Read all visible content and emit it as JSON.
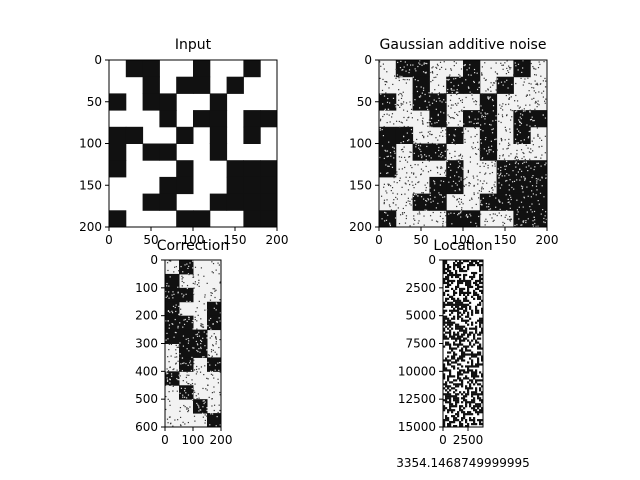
{
  "figure": {
    "caption": "3354.1468749999995"
  },
  "chart_data": [
    {
      "type": "heatmap",
      "title": "Input",
      "xlabel": "",
      "ylabel": "",
      "xlim": [
        0,
        200
      ],
      "ylim": [
        200,
        0
      ],
      "xticks": [
        0,
        50,
        100,
        150,
        200
      ],
      "yticks": [
        0,
        50,
        100,
        150,
        200
      ],
      "colormap": "gray",
      "rows": 10,
      "cols": 10,
      "grid": [
        [
          1,
          0,
          0,
          1,
          1,
          0,
          1,
          1,
          0,
          1
        ],
        [
          1,
          1,
          0,
          1,
          0,
          0,
          1,
          0,
          1,
          1
        ],
        [
          0,
          1,
          0,
          0,
          1,
          1,
          0,
          1,
          1,
          1
        ],
        [
          1,
          1,
          1,
          0,
          1,
          0,
          0,
          1,
          0,
          0
        ],
        [
          0,
          0,
          1,
          1,
          0,
          1,
          0,
          1,
          0,
          1
        ],
        [
          0,
          1,
          0,
          0,
          1,
          1,
          0,
          1,
          1,
          1
        ],
        [
          0,
          1,
          1,
          1,
          0,
          1,
          1,
          0,
          0,
          0
        ],
        [
          1,
          1,
          1,
          0,
          0,
          1,
          1,
          0,
          0,
          0
        ],
        [
          1,
          1,
          0,
          0,
          1,
          1,
          0,
          0,
          0,
          0
        ],
        [
          0,
          1,
          1,
          1,
          0,
          0,
          1,
          1,
          0,
          0
        ]
      ]
    },
    {
      "type": "heatmap",
      "title": "Gaussian additive noise",
      "xlabel": "",
      "ylabel": "",
      "xlim": [
        0,
        200
      ],
      "ylim": [
        200,
        0
      ],
      "xticks": [
        0,
        50,
        100,
        150,
        200
      ],
      "yticks": [
        0,
        50,
        100,
        150,
        200
      ],
      "colormap": "gray",
      "noise": "gaussian additive, salt-and-pepper speckle"
    },
    {
      "type": "heatmap",
      "title": "Correction",
      "xlabel": "",
      "ylabel": "",
      "xlim": [
        0,
        200
      ],
      "ylim": [
        600,
        0
      ],
      "xticks": [
        0,
        100,
        200
      ],
      "yticks": [
        0,
        100,
        200,
        300,
        400,
        500,
        600
      ],
      "colormap": "gray",
      "rows": 12,
      "cols": 4,
      "grid": [
        [
          1,
          0,
          1,
          1
        ],
        [
          0,
          1,
          1,
          1
        ],
        [
          0,
          0,
          1,
          1
        ],
        [
          0,
          1,
          1,
          0
        ],
        [
          0,
          0,
          1,
          0
        ],
        [
          0,
          0,
          0,
          1
        ],
        [
          1,
          0,
          0,
          1
        ],
        [
          1,
          0,
          1,
          0
        ],
        [
          0,
          1,
          1,
          1
        ],
        [
          1,
          0,
          1,
          1
        ],
        [
          1,
          1,
          0,
          1
        ],
        [
          1,
          1,
          1,
          0
        ]
      ]
    },
    {
      "type": "heatmap",
      "title": "Location",
      "xlabel": "3354.1468749999995",
      "ylabel": "",
      "xlim": [
        0,
        4000
      ],
      "ylim": [
        15000,
        0
      ],
      "xticks": [
        0,
        2500
      ],
      "yticks": [
        0,
        2500,
        5000,
        7500,
        10000,
        12500,
        15000
      ],
      "colormap": "gray",
      "pattern": "random binary speckle"
    }
  ]
}
